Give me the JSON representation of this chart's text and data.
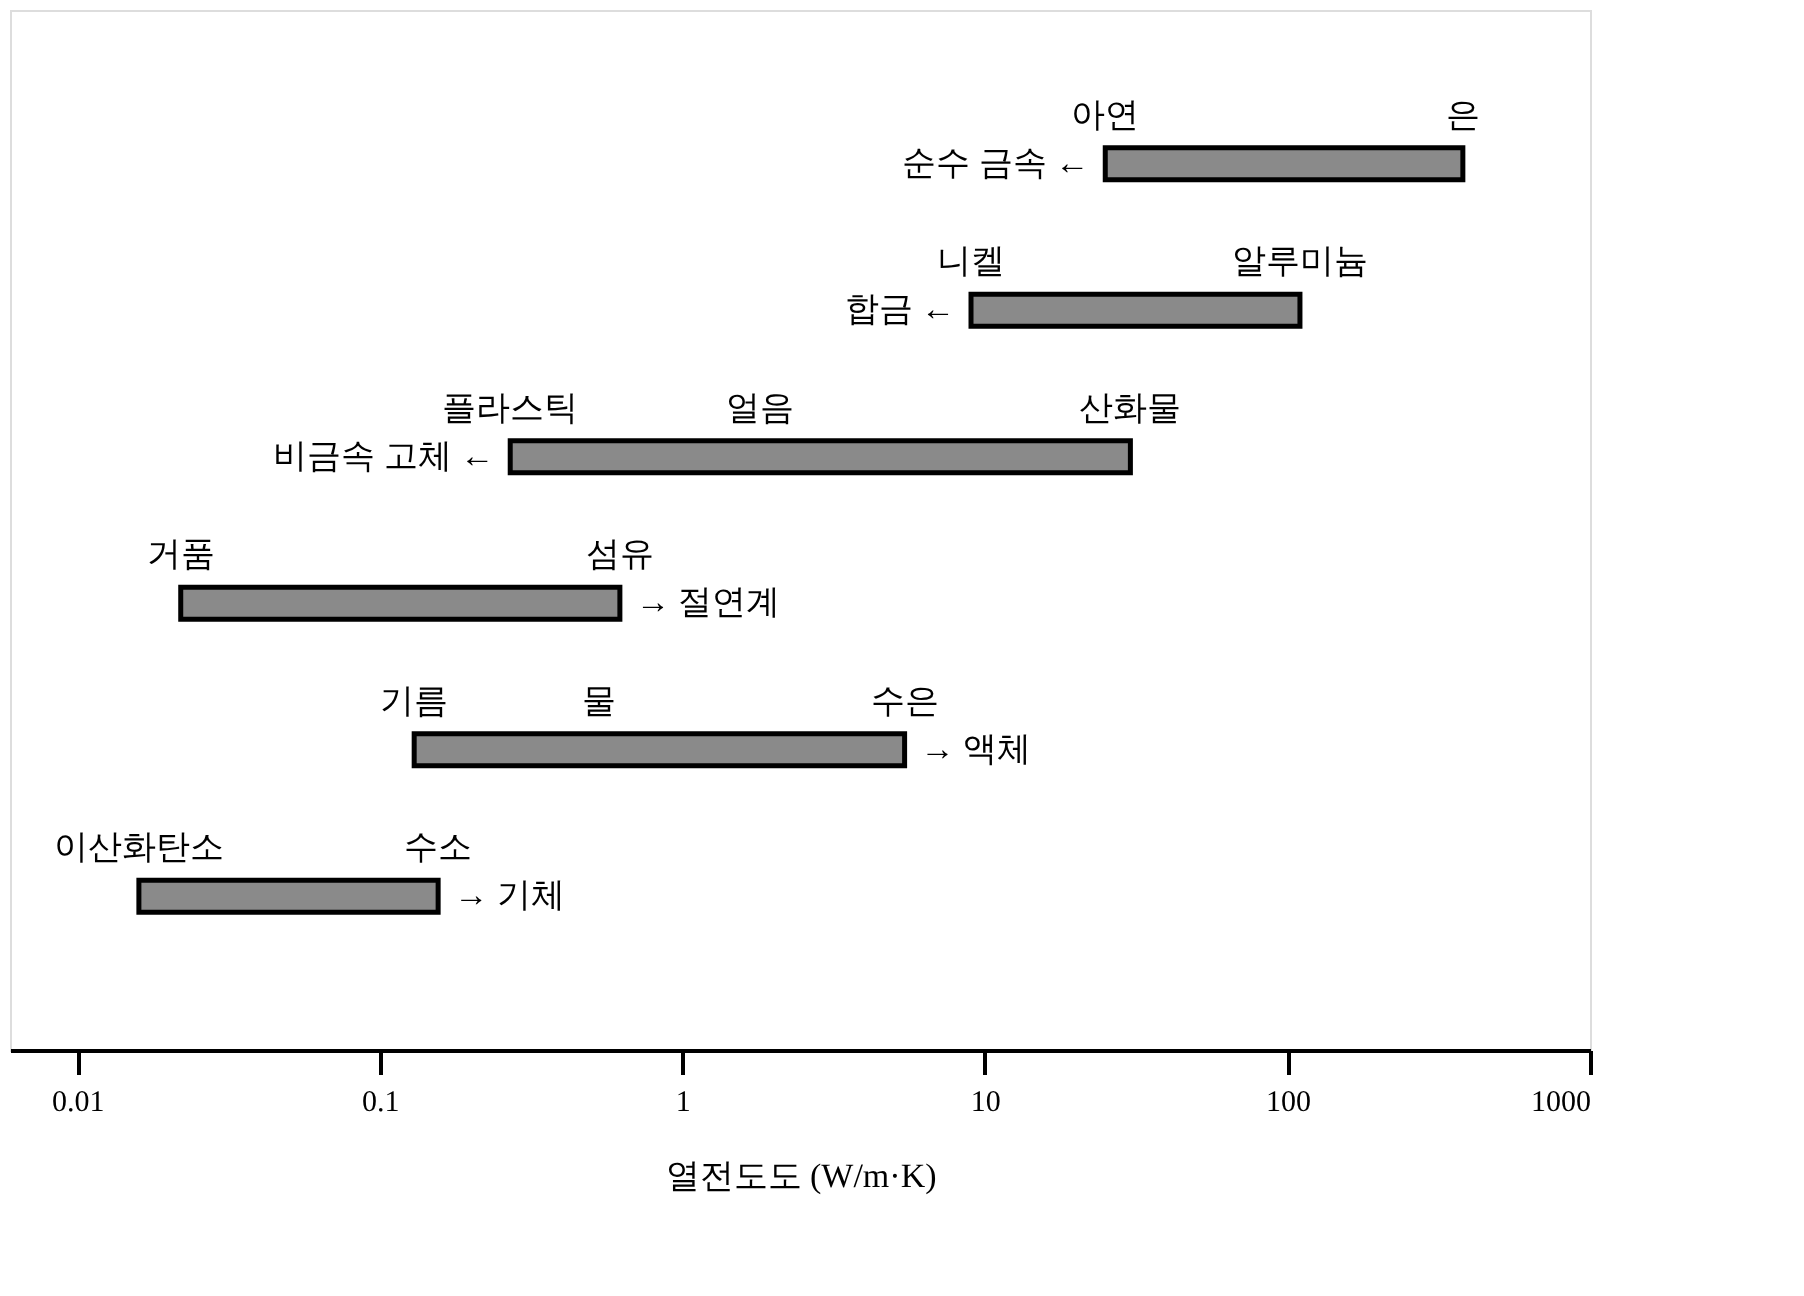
{
  "chart_data": {
    "type": "bar",
    "orientation": "horizontal",
    "log": "x",
    "xlabel": "열전도도 (W/m·K)",
    "categories": [
      "순수 금속 ←",
      "합금 ←",
      "비금속 고체 ←",
      "→ 절연계",
      "→ 액체",
      "→ 기체"
    ],
    "base": [
      25,
      9,
      0.27,
      0.022,
      0.13,
      0.016
    ],
    "values": [
      355,
      101,
      30,
      0.6,
      5.3,
      0.14
    ],
    "color": "#8a8a8a",
    "xlim": [
      0.006,
      1000
    ],
    "xticks": [
      0.01,
      0.1,
      1,
      10,
      100,
      1000
    ],
    "grid": false,
    "tick_labels": "x",
    "annotations": [
      {
        "text": "아연",
        "x": 25,
        "y": "순수 금속 ←"
      },
      {
        "text": "은",
        "x": 380,
        "y": "순수 금속 ←"
      },
      {
        "text": "니켈",
        "x": 9,
        "y": "합금 ←"
      },
      {
        "text": "알루미늄",
        "x": 110,
        "y": "합금 ←"
      },
      {
        "text": "플라스틱",
        "x": 0.27,
        "y": "비금속 고체 ←"
      },
      "얼음",
      {
        "text": "산화물",
        "x": 30.27,
        "y": "비금속 고체 ←"
      },
      {
        "text": "거품",
        "x": 0.022,
        "y": "→ 절연계"
      },
      {
        "text": "섬유",
        "x": 0.622,
        "y": "→ 절연계"
      },
      {
        "text": "기름",
        "x": 0.13,
        "y": "→ 액체"
      },
      "물",
      {
        "text": "수은",
        "x": 5.43,
        "y": "→ 액체"
      },
      {
        "text": "이산화탄소",
        "x": 0.016,
        "y": "→ 기체"
      },
      {
        "text": "수소",
        "x": 0.156,
        "y": "→ 기체"
      }
    ]
  }
}
